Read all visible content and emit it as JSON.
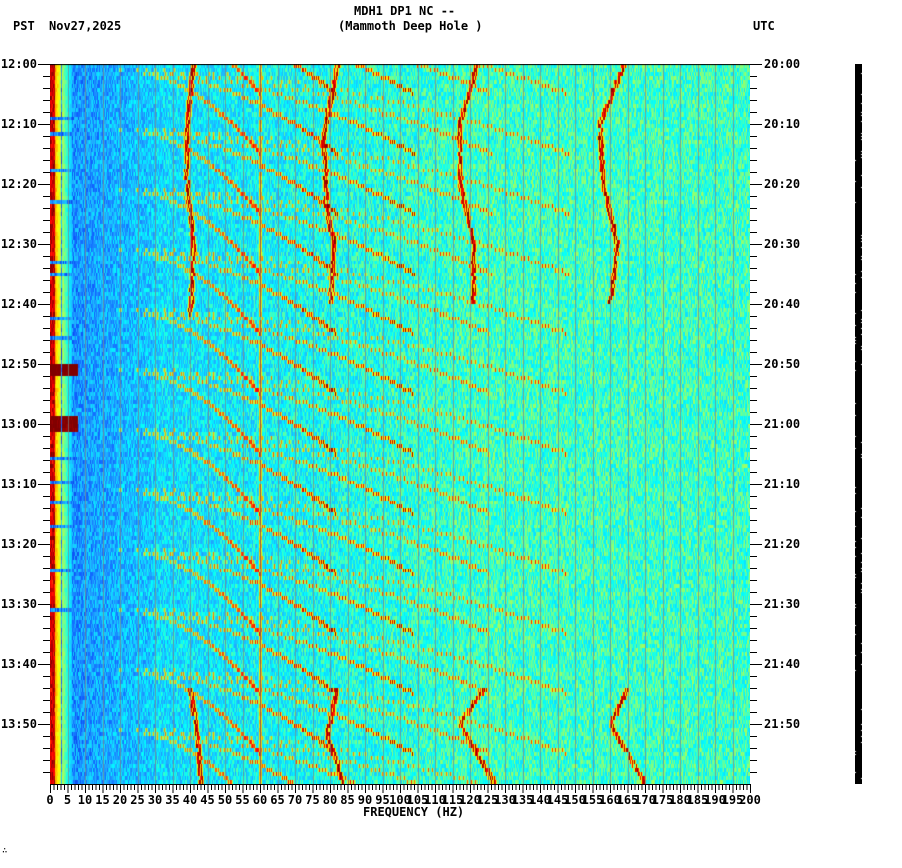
{
  "header": {
    "station": "MDH1 DP1 NC --",
    "site": "(Mammoth Deep Hole )",
    "left_tz": "PST",
    "date": "Nov27,2025",
    "right_tz": "UTC"
  },
  "footer": {
    "mark": "∴"
  },
  "chart_data": {
    "type": "heatmap",
    "subtype": "spectrogram",
    "title": "MDH1 DP1 NC -- (Mammoth Deep Hole )",
    "xlabel": "FREQUENCY (HZ)",
    "ylabel_left": "PST",
    "ylabel_right": "UTC",
    "date": "Nov27,2025",
    "xlim": [
      0,
      200
    ],
    "x_ticks": [
      0,
      5,
      10,
      15,
      20,
      25,
      30,
      35,
      40,
      45,
      50,
      55,
      60,
      65,
      70,
      75,
      80,
      85,
      90,
      95,
      100,
      105,
      110,
      115,
      120,
      125,
      130,
      135,
      140,
      145,
      150,
      155,
      160,
      165,
      170,
      175,
      180,
      185,
      190,
      195,
      200
    ],
    "x_tick_labels": [
      "0",
      "5",
      "10",
      "15",
      "20",
      "25",
      "30",
      "35",
      "40",
      "45",
      "50",
      "55",
      "60",
      "65",
      "70",
      "75",
      "80",
      "85",
      "90",
      "95",
      "100",
      "105",
      "110",
      "115",
      "120",
      "125",
      "130",
      "135",
      "140",
      "145",
      "150",
      "155",
      "160",
      "165",
      "170",
      "175",
      "180",
      "185",
      "190",
      "195",
      "200"
    ],
    "y_ticks_left": [
      "12:00",
      "12:10",
      "12:20",
      "12:30",
      "12:40",
      "12:50",
      "13:00",
      "13:10",
      "13:20",
      "13:30",
      "13:40",
      "13:50"
    ],
    "y_ticks_right": [
      "20:00",
      "20:10",
      "20:20",
      "20:30",
      "20:40",
      "20:50",
      "21:00",
      "21:10",
      "21:20",
      "21:30",
      "21:40",
      "21:50"
    ],
    "time_range_minutes": 120,
    "minor_tick_minutes": 2,
    "colormap": [
      "#0000b0",
      "#1060ff",
      "#20b0ff",
      "#00ffff",
      "#80ff80",
      "#ffff00",
      "#ff8000",
      "#ff0000",
      "#800000"
    ],
    "features": {
      "constant_lines_hz": [
        60
      ],
      "low_freq_band_hz": [
        0,
        3
      ],
      "wandering_lines": [
        {
          "name": "line-40hz",
          "points_hz_min": [
            [
              41,
              0
            ],
            [
              39,
              10
            ],
            [
              39,
              20
            ],
            [
              41,
              30
            ],
            [
              40,
              42
            ]
          ]
        },
        {
          "name": "line-80hz",
          "points_hz_min": [
            [
              82,
              0
            ],
            [
              78,
              12
            ],
            [
              79,
              24
            ],
            [
              81,
              30
            ],
            [
              80,
              40
            ]
          ]
        },
        {
          "name": "line-122hz",
          "points_hz_min": [
            [
              122,
              0
            ],
            [
              117,
              10
            ],
            [
              117,
              20
            ],
            [
              121,
              30
            ],
            [
              121,
              40
            ]
          ]
        },
        {
          "name": "line-162hz",
          "points_hz_min": [
            [
              164,
              0
            ],
            [
              157,
              10
            ],
            [
              158,
              20
            ],
            [
              162,
              30
            ],
            [
              160,
              40
            ]
          ]
        },
        {
          "name": "line-40hz-late",
          "points_hz_min": [
            [
              40,
              104
            ],
            [
              42,
              112
            ],
            [
              43,
              120
            ]
          ]
        },
        {
          "name": "line-83hz-late",
          "points_hz_min": [
            [
              82,
              104
            ],
            [
              79,
              112
            ],
            [
              84,
              120
            ]
          ]
        },
        {
          "name": "line-125hz-late",
          "points_hz_min": [
            [
              124,
              104
            ],
            [
              117,
              110
            ],
            [
              127,
              120
            ]
          ]
        },
        {
          "name": "line-170hz-late",
          "points_hz_min": [
            [
              165,
              104
            ],
            [
              160,
              110
            ],
            [
              170,
              120
            ]
          ]
        }
      ],
      "chirp_sweep_period_minutes": 10,
      "chirp_start_hz": 20,
      "chirp_end_hz_range": [
        60,
        135
      ],
      "transient_bursts": [
        {
          "time_min": 50,
          "hz_range": [
            0,
            8
          ]
        },
        {
          "time_min": 59,
          "hz_range": [
            0,
            8
          ]
        }
      ]
    }
  }
}
